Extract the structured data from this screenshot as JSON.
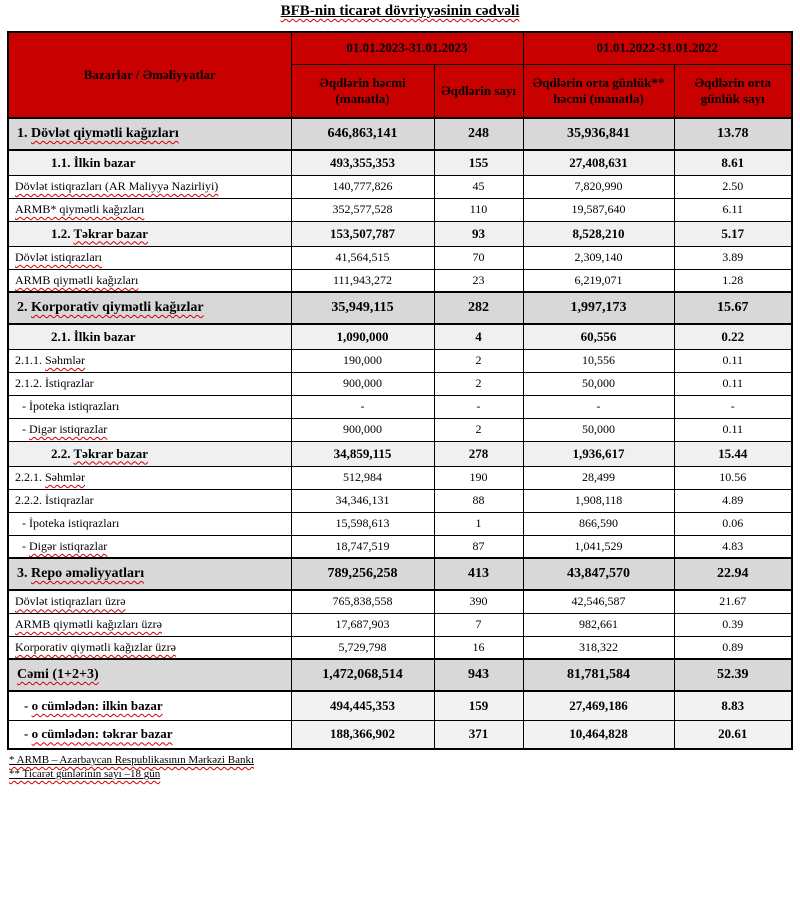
{
  "title": "BFB-nin ticarət dövriyyəsinin cədvəli",
  "colors": {
    "header_bg": "#c80000",
    "section_row_bg": "#d8d8d8",
    "subsection_row_bg": "#f0f0f0",
    "subtotal_value_bg": "#f2f2f2",
    "border": "#000000",
    "spellcheck_squiggle": "#d40000"
  },
  "table": {
    "corner_header": "Bazarlar / Əməliyyatlar",
    "period_groups": [
      {
        "label": "01.01.2023-31.01.2023",
        "columns": [
          "Əqdlərin həcmi (manatla)",
          "Əqdlərin sayı"
        ]
      },
      {
        "label": "01.01.2022-31.01.2022",
        "columns": [
          "Əqdlərin orta günlük** həcmi (manatla)",
          "Əqdlərin orta günlük sayı"
        ]
      }
    ],
    "rows": [
      {
        "prefix": "1.",
        "text": "Dövlət qiymətli kağızları",
        "type": "section",
        "squiggle": true,
        "values": [
          "646,863,141",
          "248",
          "35,936,841",
          "13.78"
        ]
      },
      {
        "prefix": "1.1.",
        "text": "İlkin bazar",
        "type": "subsection",
        "squiggle": false,
        "values": [
          "493,355,353",
          "155",
          "27,408,631",
          "8.61"
        ]
      },
      {
        "prefix": "",
        "text": "Dövlət istiqrazları (AR Maliyyə Nazirliyi)",
        "type": "normal",
        "squiggle": true,
        "values": [
          "140,777,826",
          "45",
          "7,820,990",
          "2.50"
        ]
      },
      {
        "prefix": "",
        "text": "ARMB* qiymətli kağızları",
        "type": "normal",
        "squiggle": true,
        "values": [
          "352,577,528",
          "110",
          "19,587,640",
          "6.11"
        ]
      },
      {
        "prefix": "1.2.",
        "text": "Təkrar bazar",
        "type": "subsection",
        "squiggle": true,
        "values": [
          "153,507,787",
          "93",
          "8,528,210",
          "5.17"
        ]
      },
      {
        "prefix": "",
        "text": "Dövlət istiqrazları",
        "type": "normal",
        "squiggle": true,
        "values": [
          "41,564,515",
          "70",
          "2,309,140",
          "3.89"
        ]
      },
      {
        "prefix": "",
        "text": "ARMB qiymətli kağızları",
        "type": "normal",
        "squiggle": true,
        "values": [
          "111,943,272",
          "23",
          "6,219,071",
          "1.28"
        ]
      },
      {
        "prefix": "2.",
        "text": "Korporativ qiymətli kağızlar",
        "type": "section",
        "squiggle": true,
        "values": [
          "35,949,115",
          "282",
          "1,997,173",
          "15.67"
        ]
      },
      {
        "prefix": "2.1.",
        "text": "İlkin bazar",
        "type": "subsection",
        "squiggle": false,
        "values": [
          "1,090,000",
          "4",
          "60,556",
          "0.22"
        ]
      },
      {
        "prefix": "2.1.1.",
        "text": "Səhmlər",
        "type": "normal",
        "squiggle": true,
        "values": [
          "190,000",
          "2",
          "10,556",
          "0.11"
        ]
      },
      {
        "prefix": "2.1.2.",
        "text": "İstiqrazlar",
        "type": "normal",
        "squiggle": false,
        "values": [
          "900,000",
          "2",
          "50,000",
          "0.11"
        ]
      },
      {
        "prefix": "-",
        "text": "İpoteka istiqrazları",
        "type": "dash",
        "squiggle": false,
        "values": [
          "-",
          "-",
          "-",
          "-"
        ]
      },
      {
        "prefix": "-",
        "text": "Digər istiqrazlar",
        "type": "dash",
        "squiggle": true,
        "values": [
          "900,000",
          "2",
          "50,000",
          "0.11"
        ]
      },
      {
        "prefix": "2.2.",
        "text": "Təkrar bazar",
        "type": "subsection",
        "squiggle": true,
        "values": [
          "34,859,115",
          "278",
          "1,936,617",
          "15.44"
        ]
      },
      {
        "prefix": "2.2.1.",
        "text": "Səhmlər",
        "type": "normal",
        "squiggle": true,
        "values": [
          "512,984",
          "190",
          "28,499",
          "10.56"
        ]
      },
      {
        "prefix": "2.2.2.",
        "text": "İstiqrazlar",
        "type": "normal",
        "squiggle": false,
        "values": [
          "34,346,131",
          "88",
          "1,908,118",
          "4.89"
        ]
      },
      {
        "prefix": "-",
        "text": "İpoteka istiqrazları",
        "type": "dash",
        "squiggle": false,
        "values": [
          "15,598,613",
          "1",
          "866,590",
          "0.06"
        ]
      },
      {
        "prefix": "-",
        "text": "Digər istiqrazlar",
        "type": "dash",
        "squiggle": true,
        "values": [
          "18,747,519",
          "87",
          "1,041,529",
          "4.83"
        ]
      },
      {
        "prefix": "3.",
        "text": "Repo əməliyyatları",
        "type": "section",
        "squiggle": true,
        "values": [
          "789,256,258",
          "413",
          "43,847,570",
          "22.94"
        ]
      },
      {
        "prefix": "",
        "text": "Dövlət istiqrazları üzrə",
        "type": "normal",
        "squiggle": true,
        "values": [
          "765,838,558",
          "390",
          "42,546,587",
          "21.67"
        ]
      },
      {
        "prefix": "",
        "text": "ARMB qiymətli kağızları üzrə",
        "type": "normal",
        "squiggle": true,
        "values": [
          "17,687,903",
          "7",
          "982,661",
          "0.39"
        ]
      },
      {
        "prefix": "",
        "text": "Korporativ qiymətli kağızlar üzrə",
        "type": "normal",
        "squiggle": true,
        "values": [
          "5,729,798",
          "16",
          "318,322",
          "0.89"
        ]
      },
      {
        "prefix": "",
        "text": "Cəmi (1+2+3)",
        "type": "section",
        "squiggle": true,
        "values": [
          "1,472,068,514",
          "943",
          "81,781,584",
          "52.39"
        ]
      },
      {
        "prefix": "-",
        "text": "o cümlədən: ilkin bazar",
        "type": "subtotal",
        "squiggle": true,
        "values": [
          "494,445,353",
          "159",
          "27,469,186",
          "8.83"
        ]
      },
      {
        "prefix": "-",
        "text": "o cümlədən: təkrar bazar",
        "type": "subtotal",
        "squiggle": true,
        "values": [
          "188,366,902",
          "371",
          "10,464,828",
          "20.61"
        ]
      }
    ]
  },
  "footnotes": [
    "* ARMB – Azərbaycan Respublikasının Mərkəzi Bankı",
    "** Ticarət günlərinin sayı –18 gün"
  ]
}
